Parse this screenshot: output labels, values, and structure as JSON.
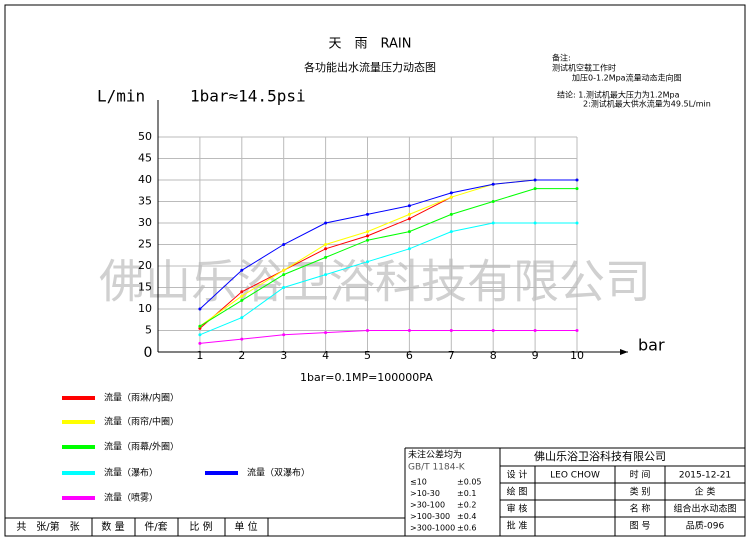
{
  "chart_data": {
    "type": "line",
    "title": "天　雨　RAIN",
    "subtitle": "各功能出水流量压力动态图",
    "y_label": "L/min",
    "x_label": "bar",
    "annotation": "1bar≈14.5psi",
    "footnote": "1bar=0.1MP=100000PA",
    "x": [
      1,
      2,
      3,
      4,
      5,
      6,
      7,
      8,
      9,
      10
    ],
    "series": [
      {
        "name": "流量（雨淋/内圈）",
        "color": "#ff0000",
        "values": [
          5.5,
          14,
          19,
          24,
          27,
          31,
          36,
          null,
          null,
          null
        ]
      },
      {
        "name": "流量（雨帘/中圈）",
        "color": "#ffff00",
        "values": [
          6,
          13,
          19,
          25,
          28,
          32,
          36,
          39,
          40,
          40
        ]
      },
      {
        "name": "流量（雨幕/外圈）",
        "color": "#00ff00",
        "values": [
          6,
          12,
          18,
          22,
          26,
          28,
          32,
          35,
          38,
          38
        ]
      },
      {
        "name": "流量（瀑布）",
        "color": "#00ffff",
        "values": [
          4,
          8,
          15,
          18,
          21,
          24,
          28,
          30,
          30,
          30
        ]
      },
      {
        "name": "流量（双瀑布）",
        "color": "#0000ff",
        "values": [
          10,
          19,
          25,
          30,
          32,
          34,
          37,
          39,
          40,
          40
        ]
      },
      {
        "name": "流量（喷雾）",
        "color": "#ff00ff",
        "values": [
          2,
          3,
          4,
          4.5,
          5,
          5,
          5,
          5,
          5,
          5
        ]
      }
    ],
    "xlim": [
      0,
      10
    ],
    "xticks": [
      0,
      1,
      2,
      3,
      4,
      5,
      6,
      7,
      8,
      9,
      10
    ],
    "ylim": [
      0,
      50
    ],
    "yticks": [
      5,
      10,
      15,
      20,
      25,
      30,
      35,
      40,
      45,
      50
    ],
    "grid": true
  },
  "notes": {
    "heading": "备注:",
    "line1": "测试机空载工作时",
    "line2": "加压0-1.2Mpa流量动态走向图",
    "conclusion": "结论: 1.测试机最大压力为1.2Mpa",
    "conclusion2": "2:测试机最大供水流量为49.5L/min"
  },
  "watermark": "佛山乐浴卫浴科技有限公司",
  "tolerance": {
    "title": "未注公差均为",
    "standard": "GB/T 1184-K",
    "rows": [
      [
        "≤10",
        "±0.05"
      ],
      [
        ">10-30",
        "±0.1"
      ],
      [
        ">30-100",
        "±0.2"
      ],
      [
        ">100-300",
        "±0.4"
      ],
      [
        ">300-1000",
        "±0.6"
      ]
    ]
  },
  "title_block": {
    "company": "佛山乐浴卫浴科技有限公司",
    "rows": [
      [
        "设 计",
        "LEO CHOW",
        "时 间",
        "2015-12-21"
      ],
      [
        "绘 图",
        "",
        "类 别",
        "企 类"
      ],
      [
        "审 核",
        "",
        "名 称",
        "组合出水动态图"
      ],
      [
        "批 准",
        "",
        "图 号",
        "品质-096"
      ]
    ]
  },
  "footer": [
    "共　张/第　张",
    "数 量",
    "件/套",
    "比 例",
    "单 位"
  ]
}
